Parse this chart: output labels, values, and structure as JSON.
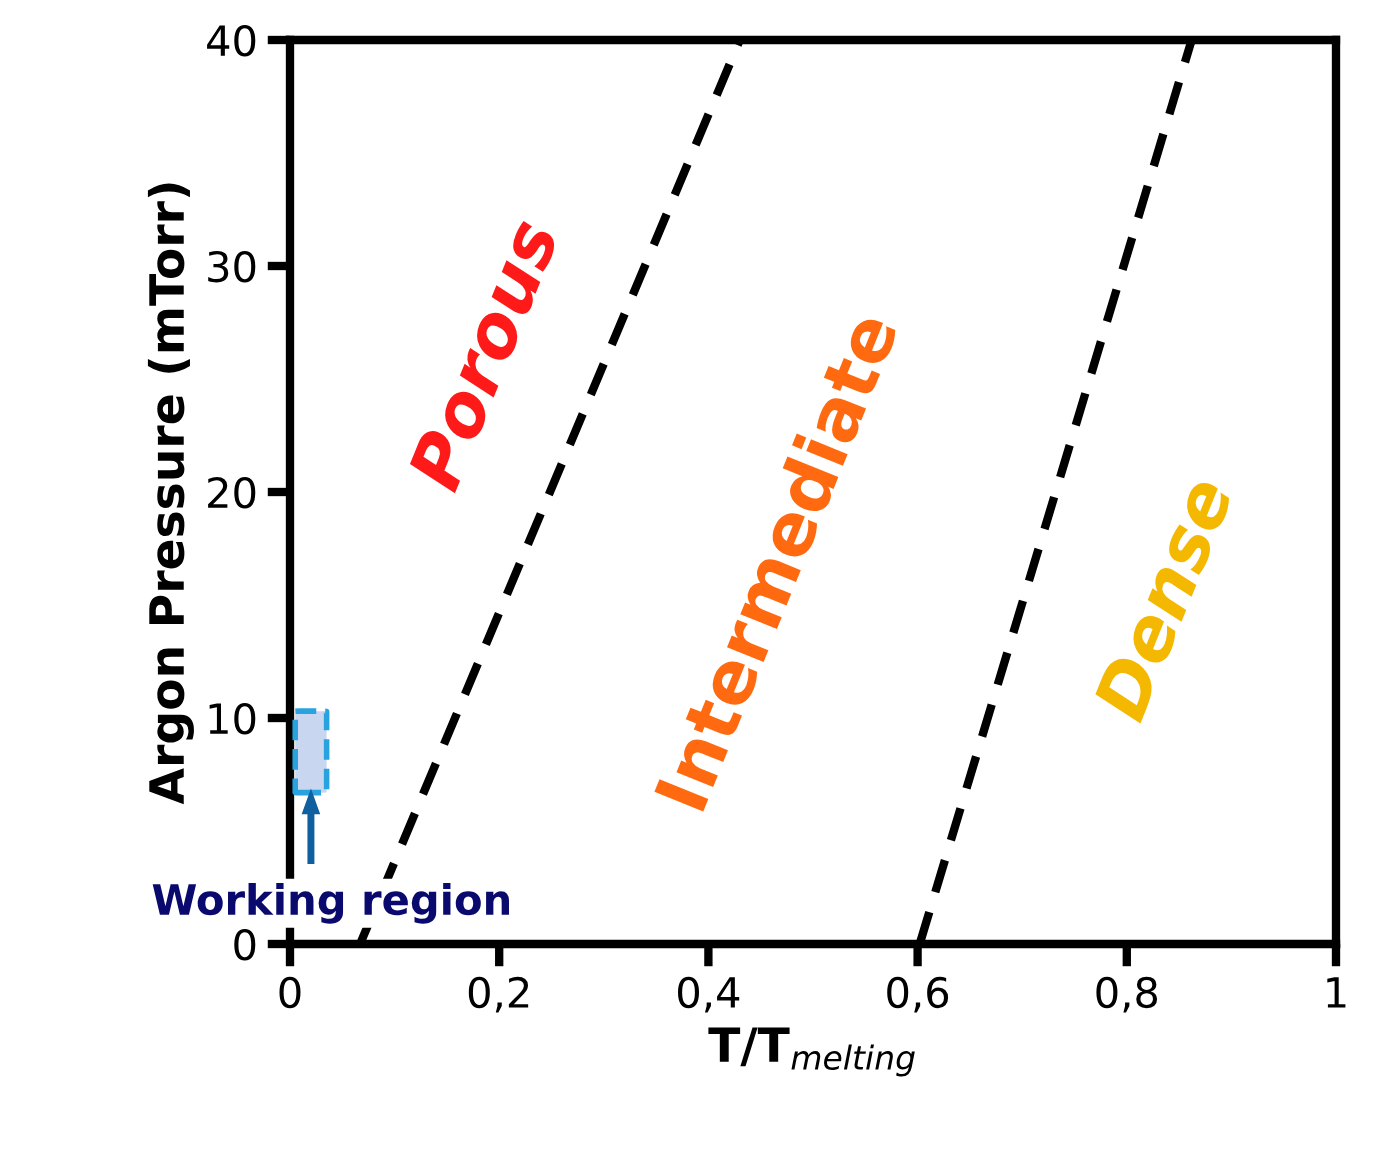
{
  "chart_data": {
    "type": "line",
    "xlabel": "T/T$_{melting}$",
    "ylabel": "Argon Pressure (mTorr)",
    "series": [
      {
        "x": [
          0.067,
          0.43
        ],
        "values": [
          0,
          40
        ],
        "color": "#000000",
        "line_style": "dashed"
      },
      {
        "x": [
          0.602,
          0.862
        ],
        "values": [
          0,
          40
        ],
        "color": "#000000",
        "line_style": "dashed"
      }
    ],
    "annotations": [
      "Porous",
      "Intermediate",
      "Dense",
      "Working region"
    ],
    "xlim": [
      0,
      1
    ],
    "ylim": [
      0,
      40
    ],
    "xticks": [
      0,
      {
        "value": 0.2,
        "label": "0,2"
      },
      {
        "value": 0.4,
        "label": "0,4"
      },
      {
        "value": 0.6,
        "label": "0,6"
      },
      {
        "value": 0.8,
        "label": "0,8"
      },
      1
    ],
    "yticks": [
      0,
      10,
      20,
      30,
      40
    ],
    "grid": false,
    "legend": false
  }
}
